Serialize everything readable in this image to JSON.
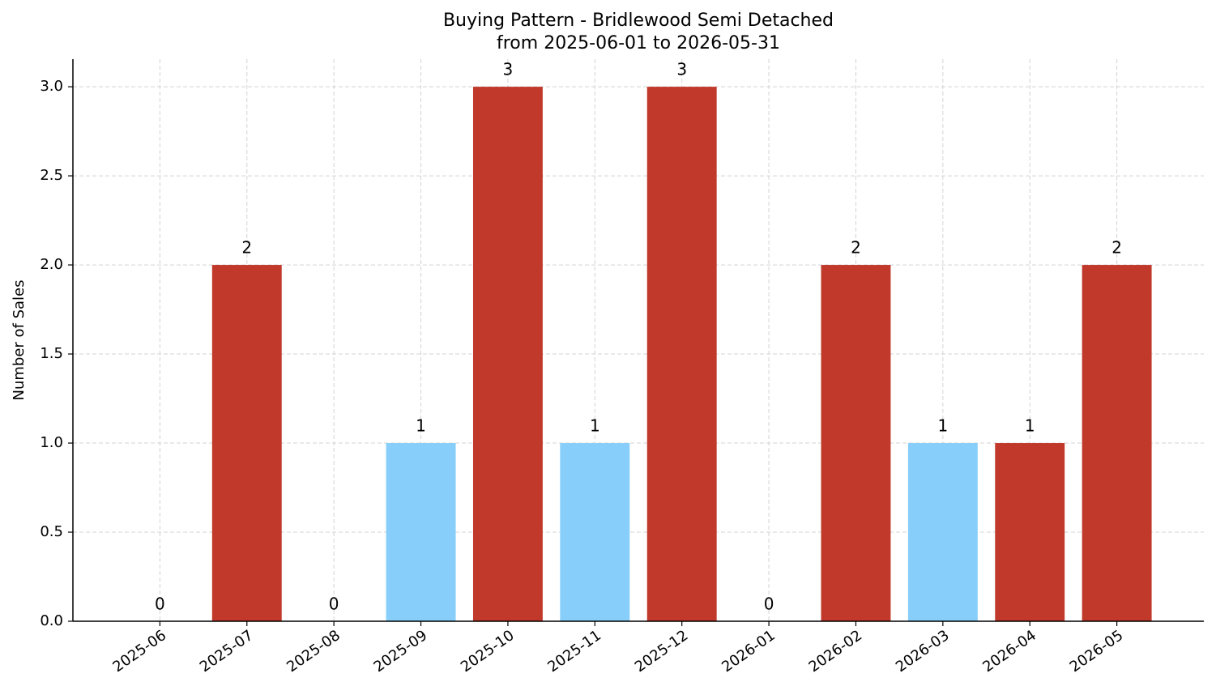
{
  "chart_data": {
    "type": "bar",
    "title": "Buying Pattern - Bridlewood Semi Detached",
    "subtitle": "from 2025-06-01 to 2026-05-31",
    "y_label": "Number of Sales",
    "categories": [
      "2025-06",
      "2025-07",
      "2025-08",
      "2025-09",
      "2025-10",
      "2025-11",
      "2025-12",
      "2026-01",
      "2026-02",
      "2026-03",
      "2026-04",
      "2026-05"
    ],
    "values": [
      0,
      2,
      0,
      1,
      3,
      1,
      3,
      0,
      2,
      1,
      1,
      2
    ],
    "colors": [
      "#c0392b",
      "#c0392b",
      "#c0392b",
      "#87cefa",
      "#c0392b",
      "#87cefa",
      "#c0392b",
      "#c0392b",
      "#c0392b",
      "#87cefa",
      "#c0392b",
      "#c0392b"
    ],
    "ylim": [
      0,
      3.155
    ],
    "yticks": [
      {
        "value": 0,
        "label": "0.0"
      },
      {
        "value": 0.5,
        "label": "0.5"
      },
      {
        "value": 1,
        "label": "1.0"
      },
      {
        "value": 1.5,
        "label": "1.5"
      },
      {
        "value": 2,
        "label": "2.0"
      },
      {
        "value": 2.5,
        "label": "2.5"
      },
      {
        "value": 3,
        "label": "3.0"
      }
    ],
    "grid": true
  }
}
